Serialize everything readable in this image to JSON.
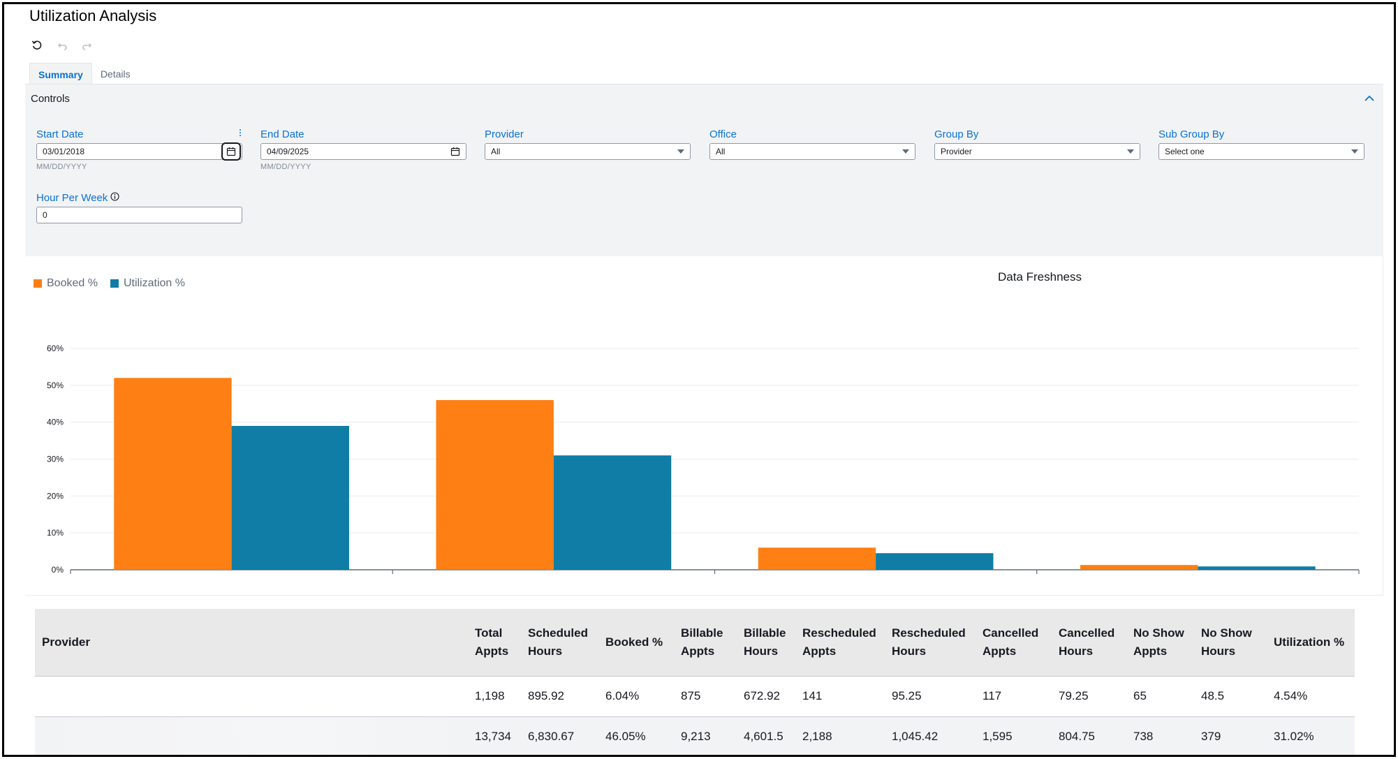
{
  "app": {
    "title": "Utilization Analysis"
  },
  "history": {
    "refresh_icon": "refresh-icon",
    "undo_icon": "undo-icon",
    "redo_icon": "redo-icon"
  },
  "tabs": [
    {
      "label": "Summary",
      "active": true
    },
    {
      "label": "Details",
      "active": false
    }
  ],
  "controls": {
    "title": "Controls",
    "start_date": {
      "label": "Start Date",
      "value": "03/01/2018",
      "hint": "MM/DD/YYYY"
    },
    "end_date": {
      "label": "End Date",
      "value": "04/09/2025",
      "hint": "MM/DD/YYYY"
    },
    "provider": {
      "label": "Provider",
      "value": "All"
    },
    "office": {
      "label": "Office",
      "value": "All"
    },
    "group_by": {
      "label": "Group By",
      "value": "Provider"
    },
    "sub_group_by": {
      "label": "Sub Group By",
      "value": "Select one"
    },
    "hours_per_week": {
      "label": "Hour Per Week",
      "value": "0"
    }
  },
  "chart_panel": {
    "freshness_title": "Data Freshness"
  },
  "colors": {
    "booked": "#fe7f14",
    "utilization": "#0f7da6",
    "accent": "#0972d3"
  },
  "chart_data": {
    "type": "bar",
    "categories": [
      "",
      "",
      "",
      ""
    ],
    "series": [
      {
        "name": "Booked %",
        "values": [
          52,
          46,
          6,
          1.3
        ]
      },
      {
        "name": "Utilization %",
        "values": [
          39,
          31,
          4.5,
          0.9
        ]
      }
    ],
    "yticks": [
      "0%",
      "10%",
      "20%",
      "30%",
      "40%",
      "50%",
      "60%"
    ],
    "ylim": [
      0,
      60
    ],
    "grid": true,
    "legend": "top-left"
  },
  "table": {
    "columns": [
      {
        "l1": "Provider",
        "l2": ""
      },
      {
        "l1": "Total",
        "l2": "Appts"
      },
      {
        "l1": "Scheduled",
        "l2": "Hours"
      },
      {
        "l1": "Booked %",
        "l2": ""
      },
      {
        "l1": "Billable",
        "l2": "Appts"
      },
      {
        "l1": "Billable",
        "l2": "Hours"
      },
      {
        "l1": "Rescheduled",
        "l2": "Appts"
      },
      {
        "l1": "Rescheduled",
        "l2": "Hours"
      },
      {
        "l1": "Cancelled",
        "l2": "Appts"
      },
      {
        "l1": "Cancelled",
        "l2": "Hours"
      },
      {
        "l1": "No Show",
        "l2": "Appts"
      },
      {
        "l1": "No Show",
        "l2": "Hours"
      },
      {
        "l1": "Utilization %",
        "l2": ""
      }
    ],
    "rows": [
      [
        "",
        "1,198",
        "895.92",
        "6.04%",
        "875",
        "672.92",
        "141",
        "95.25",
        "117",
        "79.25",
        "65",
        "48.5",
        "4.54%"
      ],
      [
        "",
        "13,734",
        "6,830.67",
        "46.05%",
        "9,213",
        "4,601.5",
        "2,188",
        "1,045.42",
        "1,595",
        "804.75",
        "738",
        "379",
        "31.02%"
      ]
    ]
  }
}
